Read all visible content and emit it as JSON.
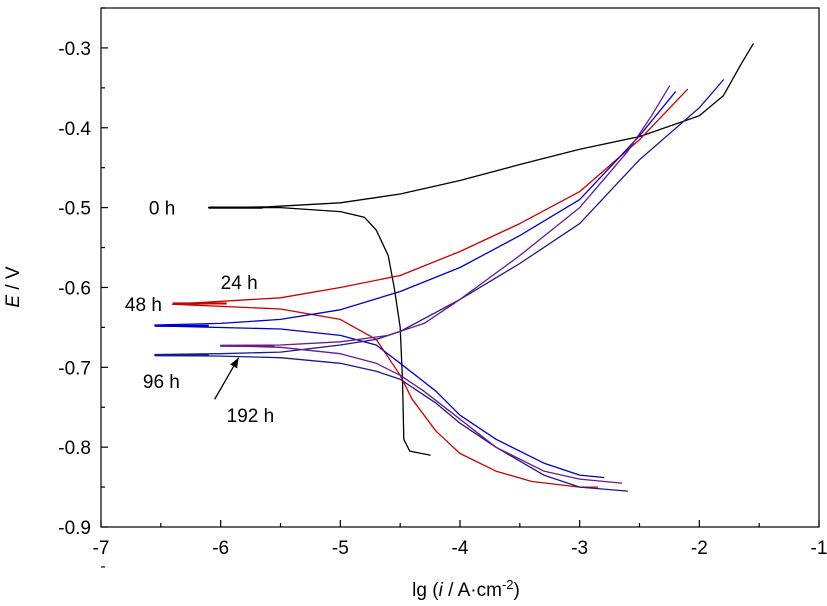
{
  "chart_data": {
    "type": "line",
    "title": "",
    "xlabel_parts": [
      "lg (",
      "i",
      " / A·cm",
      "-2",
      ")"
    ],
    "ylabel_parts": [
      "E",
      " / V"
    ],
    "xlim": [
      -7,
      -1
    ],
    "ylim": [
      -0.9,
      -0.25
    ],
    "xticks": [
      -7,
      -6,
      -5,
      -4,
      -3,
      -2,
      -1
    ],
    "xtick_labels": [
      "-7",
      "-6",
      "-5",
      "-4",
      "-3",
      "-2",
      "-1"
    ],
    "yticks": [
      -0.9,
      -0.8,
      -0.7,
      -0.6,
      -0.5,
      -0.4,
      -0.3
    ],
    "ytick_labels": [
      "-0.9",
      "-0.8",
      "-0.7",
      "-0.6",
      "-0.5",
      "-0.4",
      "-0.3"
    ],
    "grid": false,
    "legend": "none",
    "series": [
      {
        "name": "0 h",
        "color": "#000000",
        "ecorr": -0.5,
        "anodic": [
          [
            -6.1,
            -0.5
          ],
          [
            -5.6,
            -0.499
          ],
          [
            -5.0,
            -0.494
          ],
          [
            -4.5,
            -0.483
          ],
          [
            -4.0,
            -0.466
          ],
          [
            -3.5,
            -0.446
          ],
          [
            -3.0,
            -0.427
          ],
          [
            -2.5,
            -0.411
          ],
          [
            -2.0,
            -0.385
          ],
          [
            -1.8,
            -0.36
          ],
          [
            -1.65,
            -0.32
          ],
          [
            -1.55,
            -0.295
          ]
        ],
        "cathodic": [
          [
            -6.1,
            -0.5
          ],
          [
            -5.5,
            -0.5
          ],
          [
            -5.0,
            -0.505
          ],
          [
            -4.8,
            -0.512
          ],
          [
            -4.7,
            -0.528
          ],
          [
            -4.6,
            -0.56
          ],
          [
            -4.55,
            -0.6
          ],
          [
            -4.5,
            -0.65
          ],
          [
            -4.48,
            -0.72
          ],
          [
            -4.47,
            -0.79
          ],
          [
            -4.42,
            -0.805
          ],
          [
            -4.25,
            -0.81
          ]
        ]
      },
      {
        "name": "24 h",
        "color": "#cc0000",
        "ecorr": -0.62,
        "anodic": [
          [
            -6.4,
            -0.621
          ],
          [
            -5.5,
            -0.613
          ],
          [
            -5.0,
            -0.6
          ],
          [
            -4.5,
            -0.585
          ],
          [
            -4.0,
            -0.555
          ],
          [
            -3.5,
            -0.52
          ],
          [
            -3.0,
            -0.48
          ],
          [
            -2.5,
            -0.415
          ],
          [
            -2.1,
            -0.352
          ]
        ],
        "cathodic": [
          [
            -6.4,
            -0.621
          ],
          [
            -5.5,
            -0.627
          ],
          [
            -5.0,
            -0.64
          ],
          [
            -4.7,
            -0.665
          ],
          [
            -4.5,
            -0.71
          ],
          [
            -4.4,
            -0.74
          ],
          [
            -4.2,
            -0.78
          ],
          [
            -4.0,
            -0.808
          ],
          [
            -3.7,
            -0.83
          ],
          [
            -3.4,
            -0.843
          ],
          [
            -3.0,
            -0.85
          ],
          [
            -2.85,
            -0.85
          ]
        ]
      },
      {
        "name": "48 h",
        "color": "#0000cc",
        "ecorr": -0.648,
        "anodic": [
          [
            -6.55,
            -0.647
          ],
          [
            -6.0,
            -0.645
          ],
          [
            -5.5,
            -0.64
          ],
          [
            -5.0,
            -0.628
          ],
          [
            -4.5,
            -0.605
          ],
          [
            -4.0,
            -0.575
          ],
          [
            -3.5,
            -0.535
          ],
          [
            -3.0,
            -0.49
          ],
          [
            -2.5,
            -0.41
          ],
          [
            -2.2,
            -0.355
          ]
        ],
        "cathodic": [
          [
            -6.55,
            -0.648
          ],
          [
            -5.5,
            -0.652
          ],
          [
            -5.0,
            -0.66
          ],
          [
            -4.7,
            -0.672
          ],
          [
            -4.5,
            -0.695
          ],
          [
            -4.2,
            -0.73
          ],
          [
            -4.0,
            -0.76
          ],
          [
            -3.7,
            -0.79
          ],
          [
            -3.3,
            -0.82
          ],
          [
            -3.0,
            -0.835
          ],
          [
            -2.8,
            -0.838
          ]
        ]
      },
      {
        "name": "96 h",
        "color": "#1a1a8c",
        "ecorr": -0.685,
        "anodic": [
          [
            -6.55,
            -0.684
          ],
          [
            -6.0,
            -0.683
          ],
          [
            -5.5,
            -0.681
          ],
          [
            -5.0,
            -0.672
          ],
          [
            -4.7,
            -0.665
          ],
          [
            -4.5,
            -0.655
          ],
          [
            -4.0,
            -0.615
          ],
          [
            -3.5,
            -0.57
          ],
          [
            -3.0,
            -0.52
          ],
          [
            -2.5,
            -0.44
          ],
          [
            -2.0,
            -0.375
          ],
          [
            -1.8,
            -0.34
          ]
        ],
        "cathodic": [
          [
            -6.55,
            -0.685
          ],
          [
            -6.0,
            -0.686
          ],
          [
            -5.5,
            -0.688
          ],
          [
            -5.0,
            -0.695
          ],
          [
            -4.7,
            -0.705
          ],
          [
            -4.5,
            -0.715
          ],
          [
            -4.2,
            -0.745
          ],
          [
            -4.0,
            -0.77
          ],
          [
            -3.7,
            -0.8
          ],
          [
            -3.3,
            -0.835
          ],
          [
            -3.0,
            -0.85
          ],
          [
            -2.6,
            -0.855
          ]
        ]
      },
      {
        "name": "192 h",
        "color": "#6a1a8a",
        "ecorr": -0.673,
        "anodic": [
          [
            -6.0,
            -0.673
          ],
          [
            -5.5,
            -0.672
          ],
          [
            -5.0,
            -0.668
          ],
          [
            -4.6,
            -0.66
          ],
          [
            -4.3,
            -0.645
          ],
          [
            -4.0,
            -0.615
          ],
          [
            -3.5,
            -0.56
          ],
          [
            -3.0,
            -0.5
          ],
          [
            -2.6,
            -0.43
          ],
          [
            -2.4,
            -0.385
          ],
          [
            -2.25,
            -0.348
          ]
        ],
        "cathodic": [
          [
            -6.0,
            -0.673
          ],
          [
            -5.5,
            -0.675
          ],
          [
            -5.0,
            -0.683
          ],
          [
            -4.7,
            -0.695
          ],
          [
            -4.5,
            -0.71
          ],
          [
            -4.3,
            -0.73
          ],
          [
            -4.0,
            -0.765
          ],
          [
            -3.7,
            -0.8
          ],
          [
            -3.3,
            -0.83
          ],
          [
            -3.0,
            -0.84
          ],
          [
            -2.65,
            -0.845
          ]
        ]
      }
    ],
    "annotations": [
      {
        "text": "0 h",
        "x": -6.6,
        "y": -0.5
      },
      {
        "text": "24 h",
        "x": -6.0,
        "y": -0.593
      },
      {
        "text": "48 h",
        "x": -6.8,
        "y": -0.621
      },
      {
        "text": "96 h",
        "x": -6.65,
        "y": -0.717
      },
      {
        "text": "192 h",
        "x": -5.95,
        "y": -0.76
      }
    ],
    "arrow": {
      "from": [
        -6.05,
        -0.74
      ],
      "to": [
        -5.85,
        -0.688
      ]
    }
  }
}
